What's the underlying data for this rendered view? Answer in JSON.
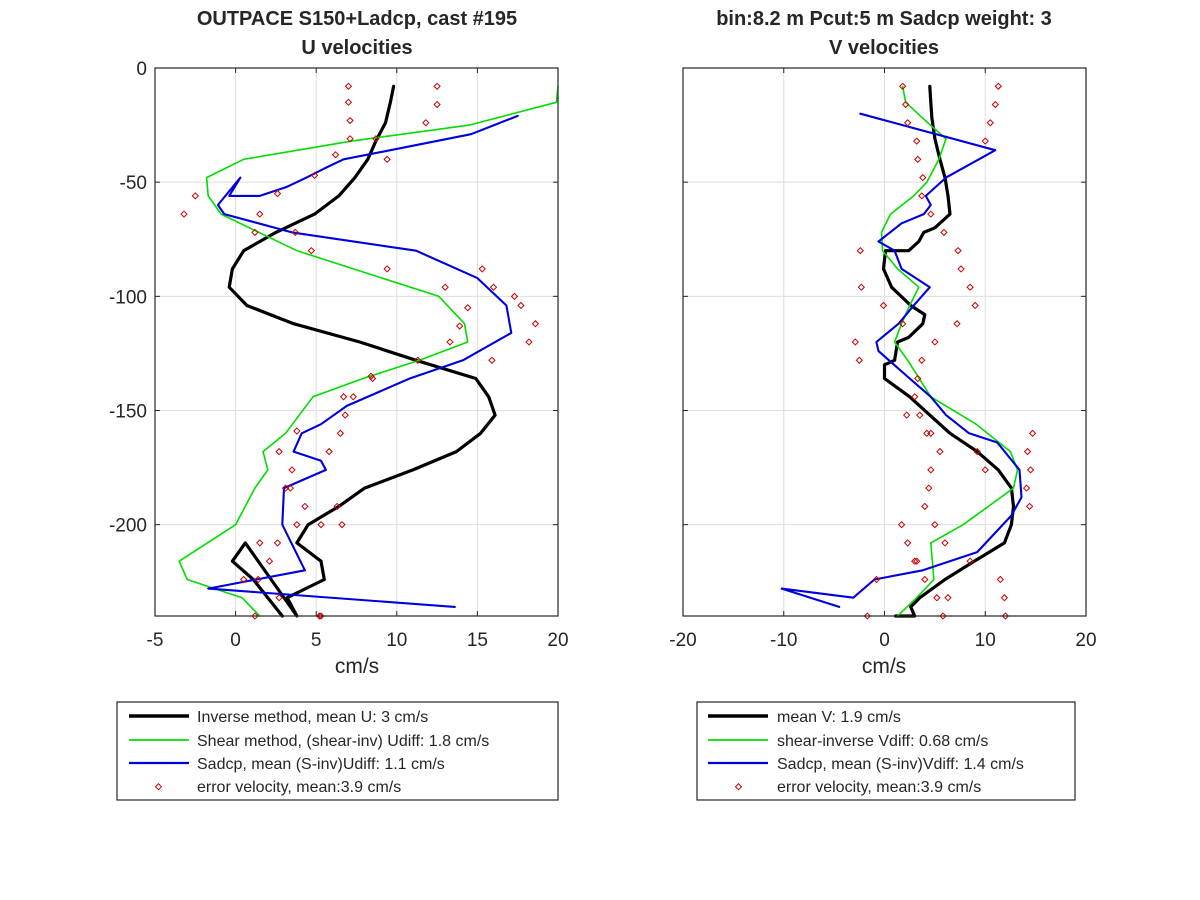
{
  "chart_data": [
    {
      "type": "line",
      "title_lines": [
        "OUTPACE S150+Ladcp, cast #195",
        "U velocities"
      ],
      "xlabel": "cm/s",
      "ylabel": "",
      "xlim": [
        -5,
        20
      ],
      "ylim": [
        -240,
        0
      ],
      "xticks": [
        -5,
        0,
        5,
        10,
        15,
        20
      ],
      "yticks": [
        0,
        -50,
        -100,
        -150,
        -200
      ],
      "show_yticklabels": true,
      "grid": true,
      "legend_position": "below",
      "series": [
        {
          "name": "Inverse method, mean U:  3 cm/s",
          "color": "#000000",
          "style": "line-thick",
          "x": [
            9.8,
            9.6,
            9.3,
            8.7,
            8.2,
            7.4,
            6.4,
            4.9,
            2.5,
            0.5,
            -0.2,
            -0.4,
            0.7,
            3.6,
            7.7,
            11.2,
            14.9,
            15.7,
            16.1,
            15.2,
            13.7,
            11.0,
            8.0,
            6.4,
            4.5,
            3.8,
            5.3,
            5.5,
            3.2,
            3.8,
            0.6,
            -0.2,
            1.1,
            2.9
          ],
          "y": [
            -8,
            -15,
            -24,
            -32,
            -40,
            -48,
            -56,
            -64,
            -72,
            -80,
            -88,
            -96,
            -104,
            -112,
            -120,
            -128,
            -136,
            -144,
            -152,
            -160,
            -168,
            -176,
            -184,
            -192,
            -200,
            -208,
            -216,
            -224,
            -232,
            -240,
            -208,
            -216,
            -224,
            -240
          ]
        },
        {
          "name": "Shear method, (shear-inv)  Udiff:  1.8 cm/s",
          "color": "#00dd00",
          "style": "line",
          "x": [
            20.0,
            19.9,
            14.5,
            7.2,
            0.5,
            -1.8,
            -1.7,
            -0.9,
            3.8,
            12.6,
            14.2,
            14.4,
            11.4,
            7.9,
            4.8,
            3.1,
            1.7,
            2.0,
            1.2,
            0.0,
            -3.5,
            -3.0,
            0.4,
            1.5
          ],
          "y": [
            -8,
            -15,
            -25,
            -32,
            -40,
            -48,
            -56,
            -64,
            -80,
            -100,
            -112,
            -120,
            -128,
            -136,
            -144,
            -160,
            -168,
            -176,
            -184,
            -200,
            -216,
            -224,
            -232,
            -240
          ],
          "xy_note": "approximate trace"
        },
        {
          "name": "Sadcp, mean (S-inv)Udiff: 1.1 cm/s",
          "color": "#0000dd",
          "style": "line",
          "x": [
            17.5,
            14.6,
            9.6,
            6.7,
            5.5,
            4.4,
            3.2,
            1.5,
            -0.4,
            0.3,
            -1.1,
            -0.7,
            3.5,
            11.2,
            15.0,
            16.8,
            17.1,
            14.1,
            10.8,
            6.9,
            5.3,
            4.1,
            3.6,
            5.3,
            5.6,
            3.0,
            2.9,
            4.3,
            -1.7,
            13.6
          ],
          "y": [
            -21,
            -29,
            -36,
            -40,
            -44,
            -48,
            -52,
            -56,
            -56,
            -48,
            -60,
            -64,
            -72,
            -80,
            -92,
            -104,
            -116,
            -128,
            -136,
            -148,
            -156,
            -160,
            -168,
            -172,
            -176,
            -184,
            -200,
            -220,
            -228,
            -236
          ]
        },
        {
          "name": "error velocity, mean:3.9 cm/s",
          "color": "#cc0000",
          "style": "markers",
          "x": [
            7.0,
            7.0,
            7.1,
            7.1,
            6.2,
            4.9,
            2.6,
            -2.5,
            -3.2,
            1.5,
            1.2,
            3.7,
            4.7,
            9.4,
            13.0,
            17.3,
            14.4,
            13.9,
            13.3,
            11.3,
            8.5,
            7.3,
            6.8,
            6.5,
            5.8,
            3.5,
            3.4,
            6.3,
            5.3,
            2.6,
            2.1,
            1.4,
            1.2,
            5.2,
            12.5,
            12.5,
            11.8,
            8.7,
            9.4,
            15.3,
            16.0,
            17.7,
            18.6,
            18.2,
            15.9,
            8.4,
            6.7,
            3.8,
            2.7,
            3.1,
            4.3,
            6.6,
            3.8,
            1.5,
            0.5,
            2.7,
            5.3
          ],
          "y": [
            -8,
            -15,
            -23,
            -31,
            -38,
            -47,
            -55,
            -56,
            -64,
            -64,
            -72,
            -72,
            -80,
            -88,
            -96,
            -100,
            -105,
            -113,
            -120,
            -128,
            -136,
            -144,
            -152,
            -160,
            -168,
            -176,
            -184,
            -192,
            -200,
            -208,
            -216,
            -224,
            -240,
            -240,
            -8,
            -16,
            -24,
            -31,
            -40,
            -88,
            -96,
            -104,
            -112,
            -120,
            -128,
            -135,
            -144,
            -159,
            -168,
            -184,
            -192,
            -200,
            -200,
            -208,
            -224,
            -232,
            -240
          ],
          "xy_note": "approximate positions"
        }
      ]
    },
    {
      "type": "line",
      "title_lines": [
        "bin:8.2 m  Pcut:5 m  Sadcp weight: 3",
        "V velocities"
      ],
      "xlabel": "cm/s",
      "ylabel": "",
      "xlim": [
        -20,
        20
      ],
      "ylim": [
        -240,
        0
      ],
      "xticks": [
        -20,
        -10,
        0,
        10,
        20
      ],
      "yticks": [
        0,
        -50,
        -100,
        -150,
        -200
      ],
      "show_yticklabels": false,
      "grid": true,
      "legend_position": "below",
      "series": [
        {
          "name": "mean V:  1.9 cm/s",
          "color": "#000000",
          "style": "line-thick",
          "x": [
            4.5,
            4.6,
            4.7,
            5.0,
            5.5,
            6.0,
            6.3,
            6.5,
            5.0,
            3.9,
            3.4,
            2.4,
            1.9,
            0.1,
            -0.1,
            0.7,
            2.6,
            4.0,
            3.8,
            2.4,
            1.3,
            1.0,
            0.0,
            0.0,
            2.5,
            4.5,
            6.5,
            9.2,
            11.3,
            12.6,
            12.8,
            12.6,
            11.9,
            10.4,
            8.9,
            6.0,
            3.5,
            2.6,
            3.0,
            2.3,
            1.1
          ],
          "y": [
            -8,
            -15,
            -22,
            -31,
            -40,
            -48,
            -56,
            -64,
            -70,
            -72,
            -76,
            -80,
            -80,
            -80,
            -88,
            -96,
            -104,
            -108,
            -112,
            -118,
            -120,
            -128,
            -130,
            -136,
            -144,
            -152,
            -160,
            -168,
            -176,
            -184,
            -192,
            -200,
            -208,
            -212,
            -216,
            -224,
            -232,
            -236,
            -240,
            -240,
            -240
          ]
        },
        {
          "name": "shear-inverse Vdiff:  0.68 cm/s",
          "color": "#00dd00",
          "style": "line",
          "x": [
            1.8,
            2.1,
            4.3,
            6.1,
            5.4,
            4.2,
            2.9,
            0.6,
            -0.3,
            -0.2,
            1.3,
            3.4,
            2.5,
            1.7,
            1.0,
            2.3,
            4.6,
            9.1,
            12.5,
            13.2,
            12.8,
            7.8,
            4.6,
            4.9,
            3.2,
            1.3
          ],
          "y": [
            -8,
            -15,
            -24,
            -31,
            -40,
            -50,
            -56,
            -64,
            -72,
            -80,
            -88,
            -96,
            -104,
            -112,
            -120,
            -128,
            -144,
            -156,
            -168,
            -176,
            -184,
            -200,
            -208,
            -224,
            -232,
            -240
          ]
        },
        {
          "name": "Sadcp, mean (S-inv)Vdiff: 1.4 cm/s",
          "color": "#0000dd",
          "style": "line",
          "x": [
            -2.4,
            11.0,
            6.1,
            4.1,
            4.6,
            3.9,
            1.7,
            -0.6,
            1.0,
            1.7,
            4.5,
            2.9,
            1.4,
            -0.8,
            -0.6,
            2.5,
            4.6,
            6.1,
            8.4,
            11.2,
            13.4,
            13.6,
            12.6,
            9.2,
            3.8,
            -1.0,
            -3.1,
            -10.2,
            -4.5
          ],
          "y": [
            -20,
            -36,
            -48,
            -56,
            -60,
            -64,
            -68,
            -76,
            -80,
            -88,
            -96,
            -104,
            -112,
            -120,
            -124,
            -136,
            -144,
            -152,
            -160,
            -164,
            -176,
            -188,
            -196,
            -212,
            -220,
            -224,
            -232,
            -228,
            -236
          ],
          "xy_note": "approximate trace"
        },
        {
          "name": "error velocity, mean:3.9 cm/s",
          "color": "#cc0000",
          "style": "markers",
          "x": [
            1.8,
            2.1,
            2.3,
            3.2,
            3.3,
            3.8,
            3.7,
            4.6,
            5.9,
            7.3,
            7.6,
            8.5,
            9.0,
            7.2,
            5.0,
            3.7,
            3.3,
            3.0,
            2.2,
            4.2,
            5.5,
            4.6,
            4.4,
            4.0,
            5.0,
            6.0,
            8.5,
            11.5,
            11.9,
            12.0,
            11.3,
            11.0,
            10.5,
            10.0,
            -2.4,
            -2.9,
            -2.5,
            -2.3,
            -0.1,
            1.8,
            3.5,
            4.6,
            9.2,
            10.0,
            14.7,
            14.2,
            14.5,
            14.1,
            14.4,
            1.7,
            2.3,
            3.2,
            4.0,
            5.2,
            6.3,
            5.8,
            3.0,
            -0.8,
            -1.7
          ],
          "y": [
            -8,
            -16,
            -24,
            -32,
            -40,
            -48,
            -56,
            -64,
            -72,
            -80,
            -88,
            -96,
            -104,
            -112,
            -120,
            -128,
            -136,
            -144,
            -152,
            -160,
            -168,
            -176,
            -184,
            -192,
            -200,
            -208,
            -216,
            -224,
            -232,
            -240,
            -8,
            -16,
            -24,
            -32,
            -80,
            -120,
            -128,
            -96,
            -104,
            -112,
            -152,
            -160,
            -168,
            -176,
            -160,
            -168,
            -176,
            -184,
            -192,
            -200,
            -208,
            -216,
            -224,
            -232,
            -232,
            -240,
            -216,
            -224,
            -240
          ],
          "xy_note": "approximate positions"
        }
      ]
    }
  ]
}
